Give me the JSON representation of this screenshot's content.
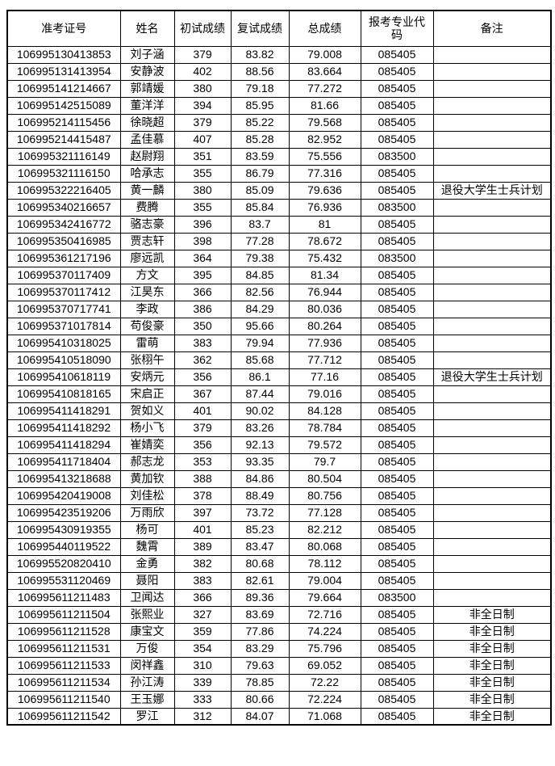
{
  "table": {
    "headers": [
      "准考证号",
      "姓名",
      "初试成绩",
      "复试成绩",
      "总成绩",
      "报考专业代码",
      "备注"
    ],
    "rows": [
      [
        "106995130413853",
        "刘子涵",
        "379",
        "83.82",
        "79.008",
        "085405",
        ""
      ],
      [
        "106995131413954",
        "安静波",
        "402",
        "88.56",
        "83.664",
        "085405",
        ""
      ],
      [
        "106995141214667",
        "郭靖媛",
        "380",
        "79.18",
        "77.272",
        "085405",
        ""
      ],
      [
        "106995142515089",
        "董洋洋",
        "394",
        "85.95",
        "81.66",
        "085405",
        ""
      ],
      [
        "106995214115456",
        "徐晓超",
        "379",
        "85.22",
        "79.568",
        "085405",
        ""
      ],
      [
        "106995214415487",
        "孟佳慕",
        "407",
        "85.28",
        "82.952",
        "085405",
        ""
      ],
      [
        "106995321116149",
        "赵尉翔",
        "351",
        "83.59",
        "75.556",
        "083500",
        ""
      ],
      [
        "106995321116150",
        "哈承志",
        "355",
        "86.79",
        "77.316",
        "085405",
        ""
      ],
      [
        "106995322216405",
        "黄一麟",
        "380",
        "85.09",
        "79.636",
        "085405",
        "退役大学生士兵计划"
      ],
      [
        "106995340216657",
        "费腾",
        "355",
        "85.84",
        "76.936",
        "083500",
        ""
      ],
      [
        "106995342416772",
        "骆志豪",
        "396",
        "83.7",
        "81",
        "085405",
        ""
      ],
      [
        "106995350416985",
        "贾志轩",
        "398",
        "77.28",
        "78.672",
        "085405",
        ""
      ],
      [
        "106995361217196",
        "廖远凯",
        "364",
        "79.38",
        "75.432",
        "083500",
        ""
      ],
      [
        "106995370117409",
        "方文",
        "395",
        "84.85",
        "81.34",
        "085405",
        ""
      ],
      [
        "106995370117412",
        "江昊东",
        "366",
        "82.56",
        "76.944",
        "085405",
        ""
      ],
      [
        "106995370717741",
        "李政",
        "386",
        "84.29",
        "80.036",
        "085405",
        ""
      ],
      [
        "106995371017814",
        "苟俊豪",
        "350",
        "95.66",
        "80.264",
        "085405",
        ""
      ],
      [
        "106995410318025",
        "雷萌",
        "383",
        "79.94",
        "77.936",
        "085405",
        ""
      ],
      [
        "106995410518090",
        "张栩午",
        "362",
        "85.68",
        "77.712",
        "085405",
        ""
      ],
      [
        "106995410618119",
        "安炳元",
        "356",
        "86.1",
        "77.16",
        "085405",
        "退役大学生士兵计划"
      ],
      [
        "106995410818165",
        "宋启正",
        "367",
        "87.44",
        "79.016",
        "085405",
        ""
      ],
      [
        "106995411418291",
        "贺如义",
        "401",
        "90.02",
        "84.128",
        "085405",
        ""
      ],
      [
        "106995411418292",
        "杨小飞",
        "379",
        "83.26",
        "78.784",
        "085405",
        ""
      ],
      [
        "106995411418294",
        "崔婧奕",
        "356",
        "92.13",
        "79.572",
        "085405",
        ""
      ],
      [
        "106995411718404",
        "郝志龙",
        "353",
        "93.35",
        "79.7",
        "085405",
        ""
      ],
      [
        "106995413218688",
        "黄加钦",
        "388",
        "84.86",
        "80.504",
        "085405",
        ""
      ],
      [
        "106995420419008",
        "刘佳松",
        "378",
        "88.49",
        "80.756",
        "085405",
        ""
      ],
      [
        "106995423519206",
        "万雨欣",
        "397",
        "73.72",
        "77.128",
        "085405",
        ""
      ],
      [
        "106995430919355",
        "杨可",
        "401",
        "85.23",
        "82.212",
        "085405",
        ""
      ],
      [
        "106995440119522",
        "魏霄",
        "389",
        "83.47",
        "80.068",
        "085405",
        ""
      ],
      [
        "106995520820410",
        "金勇",
        "382",
        "80.68",
        "78.112",
        "085405",
        ""
      ],
      [
        "106995531120469",
        "聂阳",
        "383",
        "82.61",
        "79.004",
        "085405",
        ""
      ],
      [
        "106995611211483",
        "卫闻达",
        "366",
        "89.36",
        "79.664",
        "083500",
        ""
      ],
      [
        "106995611211504",
        "张熙业",
        "327",
        "83.69",
        "72.716",
        "085405",
        "非全日制"
      ],
      [
        "106995611211528",
        "康宝文",
        "359",
        "77.86",
        "74.224",
        "085405",
        "非全日制"
      ],
      [
        "106995611211531",
        "万俊",
        "354",
        "83.29",
        "75.796",
        "085405",
        "非全日制"
      ],
      [
        "106995611211533",
        "闵祥鑫",
        "310",
        "79.63",
        "69.052",
        "085405",
        "非全日制"
      ],
      [
        "106995611211534",
        "孙江涛",
        "339",
        "78.85",
        "72.22",
        "085405",
        "非全日制"
      ],
      [
        "106995611211540",
        "王玉娜",
        "333",
        "80.66",
        "72.224",
        "085405",
        "非全日制"
      ],
      [
        "106995611211542",
        "罗江",
        "312",
        "84.07",
        "71.068",
        "085405",
        "非全日制"
      ]
    ]
  },
  "colors": {
    "border": "#000000",
    "text": "#000000",
    "background": "#ffffff"
  }
}
